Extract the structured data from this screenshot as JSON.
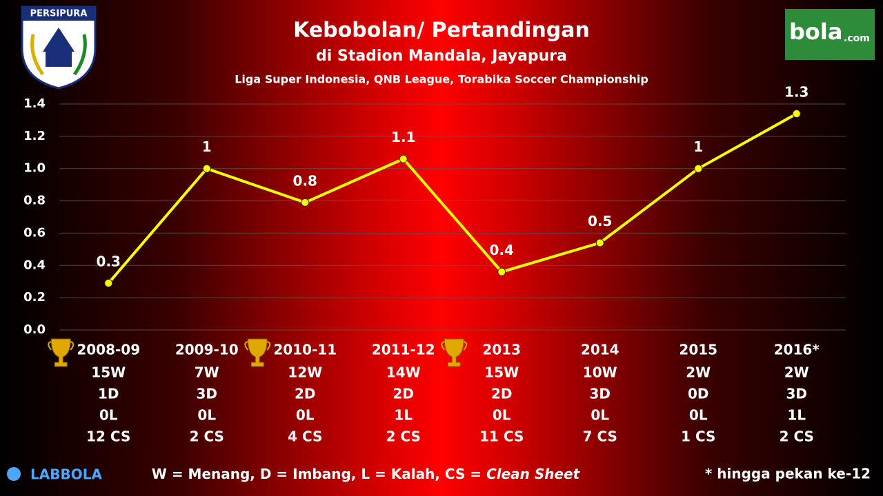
{
  "chart_data": {
    "type": "line",
    "title": "Kebobolan/ Pertandingan",
    "subtitle": "di Stadion Mandala, Jayapura",
    "subtitle2": "Liga Super Indonesia, QNB League, Torabika Soccer Championship",
    "categories": [
      "2008-09",
      "2009-10",
      "2010-11",
      "2011-12",
      "2013",
      "2014",
      "2015",
      "2016*"
    ],
    "values": [
      0.29,
      1.0,
      0.79,
      1.06,
      0.36,
      0.54,
      1.0,
      1.34
    ],
    "value_labels": [
      "0.3",
      "1",
      "0.8",
      "1.1",
      "0.4",
      "0.5",
      "1",
      "1.3"
    ],
    "color": "#ffff00",
    "ylim": [
      0,
      1.4
    ],
    "yticks": [
      {
        "value": 0,
        "label": "0.0"
      },
      0.2,
      0.4,
      0.6,
      0.8,
      {
        "value": 1,
        "label": "1.0"
      },
      1.2,
      1.4
    ],
    "grid": true,
    "trophies": [
      true,
      false,
      true,
      false,
      true,
      false,
      false,
      false
    ],
    "stats": [
      [
        "15W",
        "1D",
        "0L",
        "12 CS"
      ],
      [
        "7W",
        "3D",
        "0L",
        "2 CS"
      ],
      [
        "12W",
        "2D",
        "0L",
        "4 CS"
      ],
      [
        "14W",
        "2D",
        "1L",
        "2 CS"
      ],
      [
        "15W",
        "2D",
        "0L",
        "11 CS"
      ],
      [
        "10W",
        "3D",
        "0L",
        "7 CS"
      ],
      [
        "2W",
        "0D",
        "0L",
        "1 CS"
      ],
      [
        "2W",
        "3D",
        "1L",
        "2 CS"
      ]
    ],
    "legend_text": "W = Menang, D = Imbang, L = Kalah, CS = ",
    "legend_italic": "Clean Sheet",
    "footnote": "* hingga pekan ke-12"
  },
  "logos": {
    "persipura": "PERSIPURA",
    "bola": "bola",
    "bola_suffix": ".com",
    "labbola": "LABBOLA"
  }
}
